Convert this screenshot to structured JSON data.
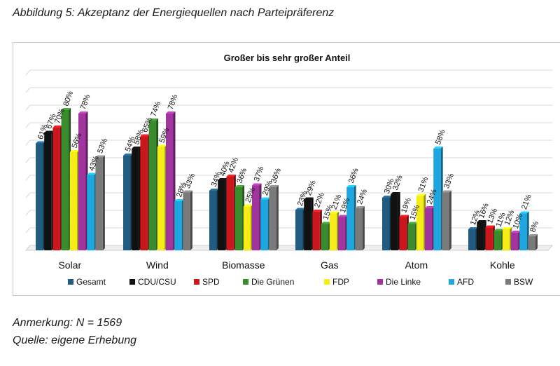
{
  "page": {
    "heading": "Abbildung 5: Akzeptanz der Energiequellen nach Parteipräferenz",
    "note": "Anmerkung: N = 1569",
    "source": "Quelle: eigene Erhebung"
  },
  "chart_data": {
    "type": "bar",
    "title": "Großer bis sehr großer Anteil",
    "xlabel": "",
    "ylabel": "",
    "ylim": [
      0,
      100
    ],
    "grid": true,
    "legend_position": "bottom",
    "value_suffix": "%",
    "categories": [
      "Solar",
      "Wind",
      "Biomasse",
      "Gas",
      "Atom",
      "Kohle"
    ],
    "series": [
      {
        "name": "Gesamt",
        "color": "#215b7f",
        "values": [
          61,
          54,
          34,
          23,
          30,
          12
        ]
      },
      {
        "name": "CDU/CSU",
        "color": "#111111",
        "values": [
          67,
          58,
          40,
          29,
          32,
          16
        ]
      },
      {
        "name": "SPD",
        "color": "#c8181e",
        "values": [
          70,
          65,
          42,
          22,
          19,
          13
        ]
      },
      {
        "name": "Die Grünen",
        "color": "#3a8a2e",
        "values": [
          80,
          74,
          36,
          15,
          15,
          11
        ]
      },
      {
        "name": "FDP",
        "color": "#f5ec1a",
        "values": [
          56,
          59,
          25,
          21,
          31,
          12
        ]
      },
      {
        "name": "Die Linke",
        "color": "#a0359d",
        "values": [
          78,
          78,
          37,
          19,
          24,
          10
        ]
      },
      {
        "name": "AFD",
        "color": "#1fa6de",
        "values": [
          43,
          28,
          29,
          36,
          58,
          21
        ]
      },
      {
        "name": "BSW",
        "color": "#7a7a7a",
        "values": [
          53,
          33,
          36,
          24,
          33,
          8
        ]
      }
    ]
  }
}
